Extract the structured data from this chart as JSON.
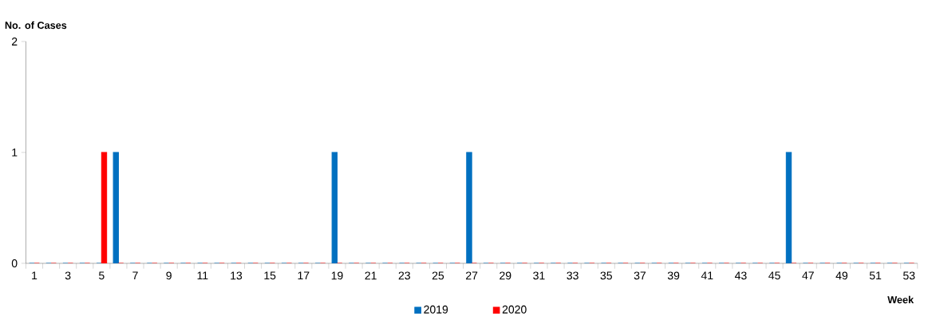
{
  "chart_data": {
    "type": "bar",
    "xlabel": "Week",
    "ylabel": "No. of Cases",
    "categories": [
      "1",
      null,
      "3",
      null,
      "5",
      null,
      "7",
      null,
      "9",
      null,
      "11",
      null,
      "13",
      null,
      "15",
      null,
      "17",
      null,
      "19",
      null,
      "21",
      null,
      "23",
      null,
      "25",
      null,
      "27",
      null,
      "29",
      null,
      "31",
      null,
      "33",
      null,
      "35",
      null,
      "37",
      null,
      "39",
      null,
      "41",
      null,
      "43",
      null,
      "45",
      null,
      "47",
      null,
      "49",
      null,
      "51",
      null,
      "53"
    ],
    "series": [
      {
        "name": "2019",
        "color": "#0070c0",
        "values": [
          0,
          0,
          0,
          0,
          0,
          1,
          0,
          0,
          0,
          0,
          0,
          0,
          0,
          0,
          0,
          0,
          0,
          0,
          1,
          0,
          0,
          0,
          0,
          0,
          0,
          0,
          1,
          0,
          0,
          0,
          0,
          0,
          0,
          0,
          0,
          0,
          0,
          0,
          0,
          0,
          0,
          0,
          0,
          0,
          0,
          1,
          0,
          0,
          0,
          0,
          0,
          0,
          0
        ]
      },
      {
        "name": "2020",
        "color": "#ff0000",
        "values": [
          0,
          0,
          0,
          0,
          1,
          0,
          0,
          0,
          0,
          0,
          0,
          0,
          0,
          0,
          0,
          0,
          0,
          0,
          0,
          0,
          0,
          0,
          0,
          0,
          0,
          0,
          0,
          0,
          0,
          0,
          0,
          0,
          0,
          0,
          0,
          0,
          0,
          0,
          0,
          0,
          0,
          0,
          0,
          0,
          0,
          0,
          0,
          0,
          0,
          0,
          0,
          0,
          0
        ]
      }
    ],
    "ylim": [
      0,
      2
    ],
    "yticks": [
      0,
      1,
      2
    ],
    "legend": "bottom"
  }
}
